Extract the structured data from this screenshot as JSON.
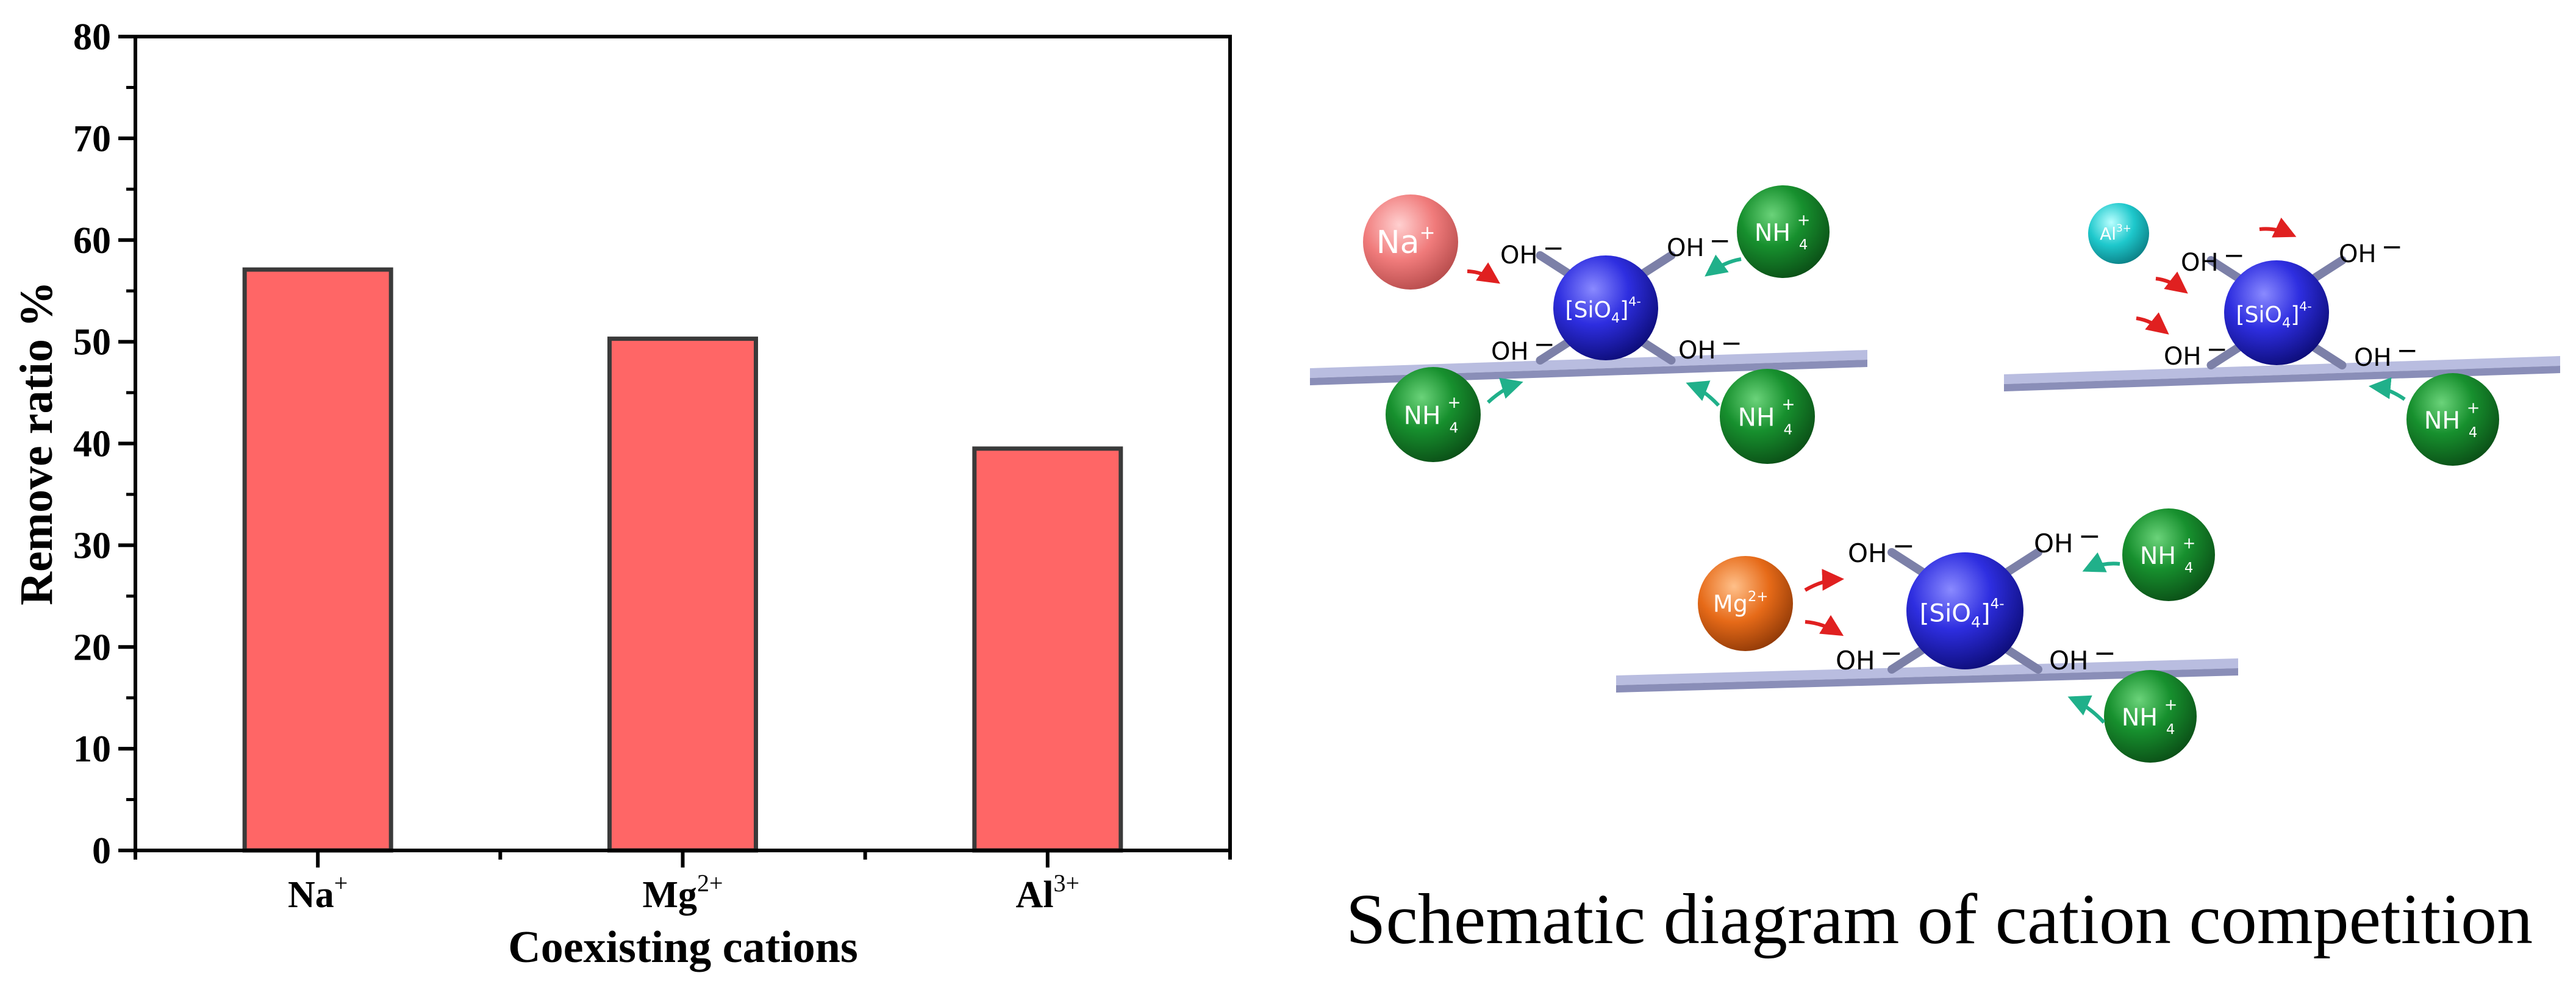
{
  "chart_data": {
    "type": "bar",
    "categories": [
      {
        "base": "Na",
        "sup": "+"
      },
      {
        "base": "Mg",
        "sup": "2+"
      },
      {
        "base": "Al",
        "sup": "3+"
      }
    ],
    "values": [
      57.1,
      50.3,
      39.5
    ],
    "xlabel": "Coexisting cations",
    "ylabel": "Remove ratio %",
    "ylim": [
      0,
      80
    ],
    "yticks": [
      0,
      10,
      20,
      30,
      40,
      50,
      60,
      70,
      80
    ],
    "ytick_labels": [
      "0",
      "10",
      "20",
      "30",
      "40",
      "50",
      "60",
      "70",
      "80"
    ],
    "grid": false,
    "bar_color": "#ff6666",
    "bar_edge_color": "#3a3a3a"
  },
  "diagram": {
    "caption": "Schematic diagram of cation competition",
    "center_base": "[SiO",
    "center_sub": "4",
    "center_close": "]",
    "center_sup": "4-",
    "oh_label": "OH",
    "oh_sup": "−",
    "nh_base": "NH",
    "nh_sub": "4",
    "nh_sup": "+",
    "cations": {
      "na": {
        "base": "Na",
        "sup": "+"
      },
      "al": {
        "base": "Al",
        "sup": "3+"
      },
      "mg": {
        "base": "Mg",
        "sup": "2+"
      }
    },
    "colors": {
      "na": "#f08080",
      "al": "#22c8cc",
      "mg": "#e8701e",
      "nh4": "#1e8a3a",
      "sio4": "#3030d8",
      "plate": "#b9bde0",
      "red_arrow": "#e02020",
      "teal_arrow": "#20b08a"
    }
  }
}
